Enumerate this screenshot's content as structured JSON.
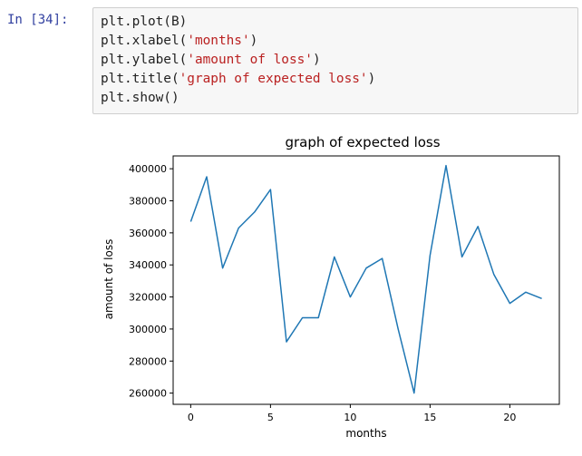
{
  "cell": {
    "prompt": "In [34]:",
    "lines": [
      {
        "pre": "plt.plot(B)",
        "str": "",
        "post": ""
      },
      {
        "pre": "plt.xlabel(",
        "str": "'months'",
        "post": ")"
      },
      {
        "pre": "plt.ylabel(",
        "str": "'amount of loss'",
        "post": ")"
      },
      {
        "pre": "plt.title(",
        "str": "'graph of expected loss'",
        "post": ")"
      },
      {
        "pre": "plt.show()",
        "str": "",
        "post": ""
      }
    ]
  },
  "chart_data": {
    "type": "line",
    "title": "graph of expected loss",
    "xlabel": "months",
    "ylabel": "amount of loss",
    "x": [
      0,
      1,
      2,
      3,
      4,
      5,
      6,
      7,
      8,
      9,
      10,
      11,
      12,
      13,
      14,
      15,
      16,
      17,
      18,
      19,
      20,
      21,
      22
    ],
    "series": [
      {
        "values": [
          367000,
          395000,
          338000,
          363000,
          373000,
          387000,
          292000,
          307000,
          307000,
          345000,
          320000,
          338000,
          344000,
          300000,
          260000,
          346000,
          402000,
          345000,
          364000,
          334000,
          316000,
          323000,
          319000
        ],
        "color": "#1f77b4"
      }
    ],
    "xlim": [
      -1.1,
      23.1
    ],
    "ylim": [
      253000,
      408000
    ],
    "xticks": [
      0,
      5,
      10,
      15,
      20
    ],
    "yticks": [
      260000,
      280000,
      300000,
      320000,
      340000,
      360000,
      380000,
      400000
    ],
    "grid": false
  }
}
